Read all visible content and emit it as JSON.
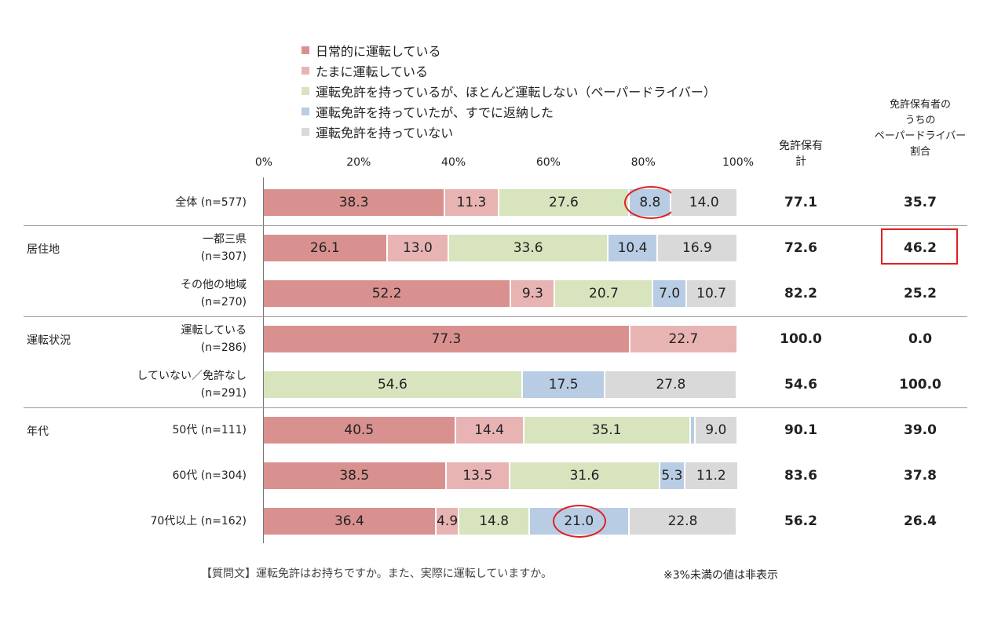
{
  "chart_data": {
    "type": "bar",
    "orientation": "horizontal",
    "stacked": true,
    "xlim": [
      0,
      100
    ],
    "x_ticks": [
      "0%",
      "20%",
      "40%",
      "60%",
      "80%",
      "100%"
    ],
    "legend_position": "top",
    "series": [
      {
        "name": "日常的に運転している",
        "color": "#d9918f"
      },
      {
        "name": "たまに運転している",
        "color": "#e8b4b3"
      },
      {
        "name": "運転免許を持っているが、ほとんど運転しない（ペーパードライバー）",
        "color": "#d7e4bd"
      },
      {
        "name": "運転免許を持っていたが、すでに返納した",
        "color": "#b8cce4"
      },
      {
        "name": "運転免許を持っていない",
        "color": "#d9d9d9"
      }
    ],
    "groups": [
      {
        "label": "",
        "rows": [
          0
        ]
      },
      {
        "label": "居住地",
        "rows": [
          1,
          2
        ]
      },
      {
        "label": "運転状況",
        "rows": [
          3,
          4
        ]
      },
      {
        "label": "年代",
        "rows": [
          5,
          6,
          7
        ]
      }
    ],
    "rows": [
      {
        "label1": "全体 (n=577)",
        "label2": "",
        "values": [
          38.3,
          11.3,
          27.6,
          8.8,
          14.0
        ],
        "license_total": "77.1",
        "paper_ratio": "35.7",
        "circled_segment": 3
      },
      {
        "label1": "一都三県",
        "label2": "(n=307)",
        "values": [
          26.1,
          13.0,
          33.6,
          10.4,
          16.9
        ],
        "license_total": "72.6",
        "paper_ratio": "46.2",
        "boxed_ratio": true
      },
      {
        "label1": "その他の地域",
        "label2": "(n=270)",
        "values": [
          52.2,
          9.3,
          20.7,
          7.0,
          10.7
        ],
        "license_total": "82.2",
        "paper_ratio": "25.2"
      },
      {
        "label1": "運転している",
        "label2": "(n=286)",
        "values": [
          77.3,
          22.7,
          0,
          0,
          0
        ],
        "license_total": "100.0",
        "paper_ratio": "0.0"
      },
      {
        "label1": "していない／免許なし",
        "label2": "(n=291)",
        "values": [
          0,
          0,
          54.6,
          17.5,
          27.8
        ],
        "license_total": "54.6",
        "paper_ratio": "100.0"
      },
      {
        "label1": "50代 (n=111)",
        "label2": "",
        "values": [
          40.5,
          14.4,
          35.1,
          1.0,
          9.0
        ],
        "license_total": "90.1",
        "paper_ratio": "39.0"
      },
      {
        "label1": "60代 (n=304)",
        "label2": "",
        "values": [
          38.5,
          13.5,
          31.6,
          5.3,
          11.2
        ],
        "license_total": "83.6",
        "paper_ratio": "37.8"
      },
      {
        "label1": "70代以上 (n=162)",
        "label2": "",
        "values": [
          36.4,
          4.9,
          14.8,
          21.0,
          22.8
        ],
        "license_total": "56.2",
        "paper_ratio": "26.4",
        "circled_segment": 3
      }
    ],
    "label_threshold": 3,
    "col_license_header": [
      "免許保有",
      "計"
    ],
    "col_ratio_header": [
      "免許保有者の",
      "うちの",
      "ペーパードライバー",
      "割合"
    ],
    "question": "【質問文】運転免許はお持ちですか。また、実際に運転していますか。",
    "note": "※3%未満の値は非表示"
  }
}
